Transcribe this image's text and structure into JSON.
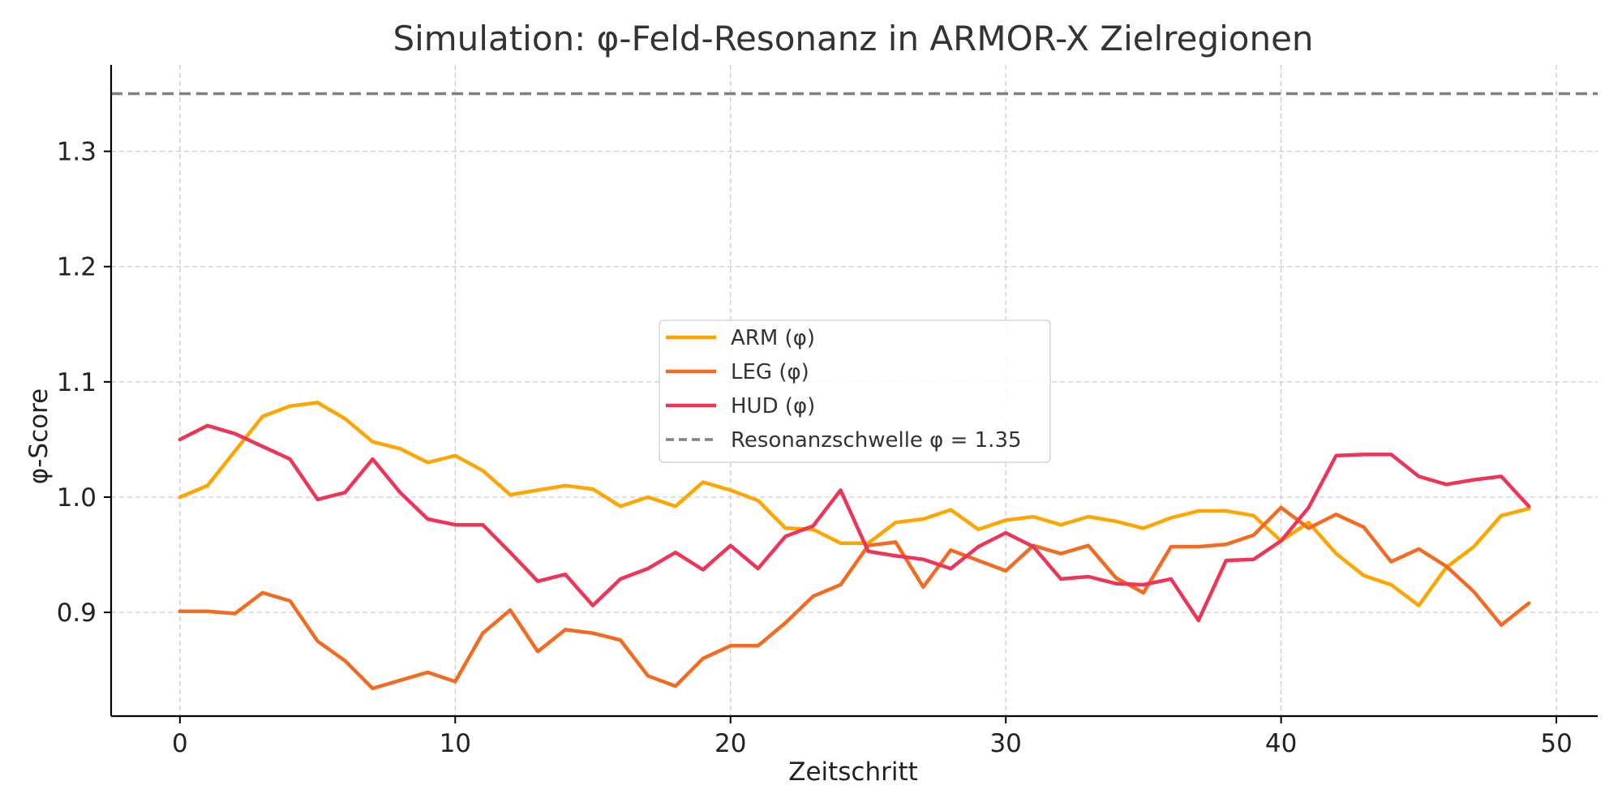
{
  "chart_data": {
    "type": "line",
    "title": "Simulation: φ-Feld-Resonanz in ARMOR-X Zielregionen",
    "xlabel": "Zeitschritt",
    "ylabel": "φ-Score",
    "xlim": [
      -2.5,
      51.5
    ],
    "ylim": [
      0.81,
      1.375
    ],
    "xticks": [
      0,
      10,
      20,
      30,
      40,
      50
    ],
    "yticks": [
      0.9,
      1.0,
      1.1,
      1.2,
      1.3
    ],
    "grid": true,
    "legend_position": "center",
    "x": [
      0,
      1,
      2,
      3,
      4,
      5,
      6,
      7,
      8,
      9,
      10,
      11,
      12,
      13,
      14,
      15,
      16,
      17,
      18,
      19,
      20,
      21,
      22,
      23,
      24,
      25,
      26,
      27,
      28,
      29,
      30,
      31,
      32,
      33,
      34,
      35,
      36,
      37,
      38,
      39,
      40,
      41,
      42,
      43,
      44,
      45,
      46,
      47,
      48,
      49
    ],
    "series": [
      {
        "name": "ARM (φ)",
        "color": "#FFA500",
        "values": [
          1.0,
          1.01,
          1.04,
          1.07,
          1.079,
          1.082,
          1.068,
          1.048,
          1.042,
          1.03,
          1.036,
          1.023,
          1.002,
          1.006,
          1.01,
          1.007,
          0.992,
          1.0,
          0.992,
          1.013,
          1.006,
          0.997,
          0.973,
          0.972,
          0.96,
          0.96,
          0.978,
          0.981,
          0.989,
          0.972,
          0.98,
          0.983,
          0.976,
          0.983,
          0.979,
          0.973,
          0.982,
          0.988,
          0.988,
          0.984,
          0.962,
          0.978,
          0.951,
          0.932,
          0.924,
          0.906,
          0.939,
          0.957,
          0.984,
          0.99
        ]
      },
      {
        "name": "LEG (φ)",
        "color": "#F26B21",
        "values": [
          0.901,
          0.901,
          0.899,
          0.917,
          0.91,
          0.875,
          0.858,
          0.834,
          0.841,
          0.848,
          0.84,
          0.882,
          0.902,
          0.866,
          0.885,
          0.882,
          0.876,
          0.845,
          0.836,
          0.86,
          0.871,
          0.871,
          0.891,
          0.914,
          0.924,
          0.958,
          0.961,
          0.922,
          0.954,
          0.945,
          0.936,
          0.958,
          0.951,
          0.958,
          0.93,
          0.917,
          0.957,
          0.957,
          0.959,
          0.967,
          0.991,
          0.973,
          0.985,
          0.974,
          0.944,
          0.955,
          0.94,
          0.918,
          0.889,
          0.908
        ]
      },
      {
        "name": "HUD (φ)",
        "color": "#EE3557",
        "values": [
          1.05,
          1.062,
          1.055,
          1.044,
          1.033,
          0.998,
          1.004,
          1.033,
          1.004,
          0.981,
          0.976,
          0.976,
          0.952,
          0.927,
          0.933,
          0.906,
          0.929,
          0.938,
          0.952,
          0.937,
          0.958,
          0.938,
          0.966,
          0.975,
          1.006,
          0.953,
          0.949,
          0.946,
          0.938,
          0.957,
          0.969,
          0.957,
          0.929,
          0.931,
          0.925,
          0.924,
          0.929,
          0.893,
          0.945,
          0.946,
          0.962,
          0.991,
          1.036,
          1.037,
          1.037,
          1.018,
          1.011,
          1.015,
          1.018,
          0.992
        ]
      }
    ],
    "reference_lines": [
      {
        "name": "Resonanzschwelle φ = 1.35",
        "y": 1.35,
        "color": "#808080",
        "style": "dashed"
      }
    ]
  }
}
